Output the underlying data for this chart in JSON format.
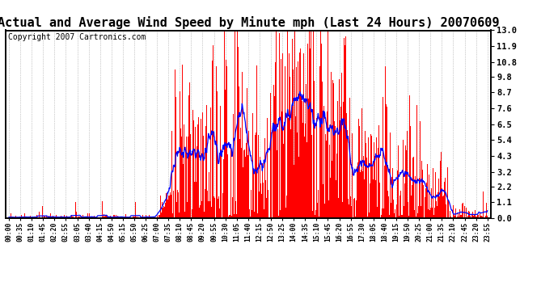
{
  "title": "Actual and Average Wind Speed by Minute mph (Last 24 Hours) 20070609",
  "copyright": "Copyright 2007 Cartronics.com",
  "yticks": [
    0.0,
    1.1,
    2.2,
    3.2,
    4.3,
    5.4,
    6.5,
    7.6,
    8.7,
    9.8,
    10.8,
    11.9,
    13.0
  ],
  "ylim": [
    0.0,
    13.0
  ],
  "bar_color": "#FF0000",
  "line_color": "#0000FF",
  "background_color": "#FFFFFF",
  "title_fontsize": 11,
  "copyright_fontsize": 7,
  "x_labels": [
    "00:00",
    "00:35",
    "01:10",
    "01:45",
    "02:20",
    "02:55",
    "03:05",
    "03:40",
    "04:15",
    "04:50",
    "05:15",
    "05:50",
    "06:25",
    "07:00",
    "07:35",
    "08:10",
    "08:45",
    "09:20",
    "09:55",
    "10:30",
    "11:05",
    "11:40",
    "12:15",
    "12:50",
    "13:25",
    "14:00",
    "14:35",
    "15:10",
    "15:45",
    "16:20",
    "16:55",
    "17:30",
    "18:05",
    "18:40",
    "19:15",
    "19:50",
    "20:25",
    "21:00",
    "21:35",
    "22:10",
    "22:45",
    "23:20",
    "23:55"
  ],
  "figsize": [
    6.9,
    3.75
  ],
  "dpi": 100
}
